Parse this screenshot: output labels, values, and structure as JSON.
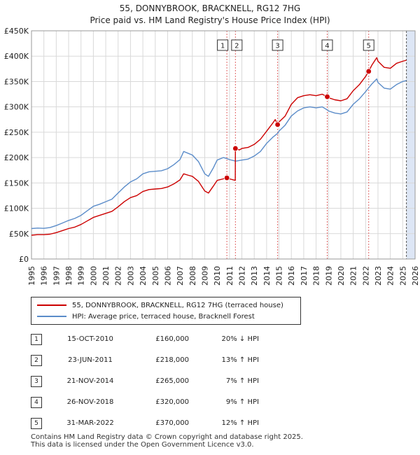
{
  "title_line1": "55, DONNYBROOK, BRACKNELL, RG12 7HG",
  "title_line2": "Price paid vs. HM Land Registry's House Price Index (HPI)",
  "colors": {
    "price": "#cc0000",
    "hpi": "#5b8cc9",
    "shade": "#dde6f5",
    "marker_line": "#e06666"
  },
  "legend": {
    "price_label": "55, DONNYBROOK, BRACKNELL, RG12 7HG (terraced house)",
    "hpi_label": "HPI: Average price, terraced house, Bracknell Forest"
  },
  "sales": [
    {
      "num": "1",
      "date": "15-OCT-2010",
      "price": "£160,000",
      "hpi": "20% ↓ HPI"
    },
    {
      "num": "2",
      "date": "23-JUN-2011",
      "price": "£218,000",
      "hpi": "13% ↑ HPI"
    },
    {
      "num": "3",
      "date": "21-NOV-2014",
      "price": "£265,000",
      "hpi": "7% ↑ HPI"
    },
    {
      "num": "4",
      "date": "26-NOV-2018",
      "price": "£320,000",
      "hpi": "9% ↑ HPI"
    },
    {
      "num": "5",
      "date": "31-MAR-2022",
      "price": "£370,000",
      "hpi": "12% ↑ HPI"
    }
  ],
  "footer": {
    "line1": "Contains HM Land Registry data © Crown copyright and database right 2025.",
    "line2": "This data is licensed under the Open Government Licence v3.0."
  },
  "chart_data": {
    "type": "line",
    "title": "Price paid vs. HM Land Registry's House Price Index (HPI)",
    "xlim": [
      1995,
      2026
    ],
    "ylim": [
      0,
      450000
    ],
    "x_ticks": [
      1995,
      1996,
      1997,
      1998,
      1999,
      2000,
      2001,
      2002,
      2003,
      2004,
      2005,
      2006,
      2007,
      2008,
      2009,
      2010,
      2011,
      2012,
      2013,
      2014,
      2015,
      2016,
      2017,
      2018,
      2019,
      2020,
      2021,
      2022,
      2023,
      2024,
      2025,
      2026
    ],
    "y_ticks": [
      {
        "value": 0,
        "label": "£0"
      },
      {
        "value": 50000,
        "label": "£50K"
      },
      {
        "value": 100000,
        "label": "£100K"
      },
      {
        "value": 150000,
        "label": "£150K"
      },
      {
        "value": 200000,
        "label": "£200K"
      },
      {
        "value": 250000,
        "label": "£250K"
      },
      {
        "value": 300000,
        "label": "£300K"
      },
      {
        "value": 350000,
        "label": "£350K"
      },
      {
        "value": 400000,
        "label": "£400K"
      },
      {
        "value": 450000,
        "label": "£450K"
      }
    ],
    "grid": true,
    "forecast_shade_from": 2025.3,
    "series": [
      {
        "name": "HPI: Average price, terraced house, Bracknell Forest",
        "points": [
          [
            1995,
            60000
          ],
          [
            1995.5,
            61000
          ],
          [
            1996,
            60500
          ],
          [
            1996.5,
            62000
          ],
          [
            1997,
            66000
          ],
          [
            1997.5,
            71000
          ],
          [
            1998,
            76000
          ],
          [
            1998.5,
            80000
          ],
          [
            1999,
            86000
          ],
          [
            1999.5,
            95000
          ],
          [
            2000,
            104000
          ],
          [
            2000.5,
            108000
          ],
          [
            2001,
            113000
          ],
          [
            2001.5,
            118000
          ],
          [
            2002,
            130000
          ],
          [
            2002.5,
            142000
          ],
          [
            2003,
            152000
          ],
          [
            2003.5,
            158000
          ],
          [
            2004,
            168000
          ],
          [
            2004.5,
            172000
          ],
          [
            2005,
            173000
          ],
          [
            2005.5,
            174000
          ],
          [
            2006,
            178000
          ],
          [
            2006.5,
            186000
          ],
          [
            2007,
            196000
          ],
          [
            2007.3,
            212000
          ],
          [
            2007.7,
            208000
          ],
          [
            2008,
            205000
          ],
          [
            2008.5,
            192000
          ],
          [
            2009,
            168000
          ],
          [
            2009.3,
            163000
          ],
          [
            2009.7,
            180000
          ],
          [
            2010,
            195000
          ],
          [
            2010.5,
            200000
          ],
          [
            2010.8,
            198000
          ],
          [
            2011,
            196000
          ],
          [
            2011.5,
            193000
          ],
          [
            2012,
            195000
          ],
          [
            2012.5,
            197000
          ],
          [
            2013,
            203000
          ],
          [
            2013.5,
            212000
          ],
          [
            2014,
            228000
          ],
          [
            2014.5,
            240000
          ],
          [
            2014.9,
            248000
          ],
          [
            2015,
            252000
          ],
          [
            2015.5,
            264000
          ],
          [
            2016,
            282000
          ],
          [
            2016.5,
            292000
          ],
          [
            2017,
            298000
          ],
          [
            2017.5,
            300000
          ],
          [
            2018,
            298000
          ],
          [
            2018.5,
            300000
          ],
          [
            2018.9,
            294000
          ],
          [
            2019,
            292000
          ],
          [
            2019.5,
            288000
          ],
          [
            2020,
            286000
          ],
          [
            2020.5,
            290000
          ],
          [
            2021,
            305000
          ],
          [
            2021.5,
            316000
          ],
          [
            2022,
            330000
          ],
          [
            2022.5,
            345000
          ],
          [
            2022.9,
            355000
          ],
          [
            2023,
            348000
          ],
          [
            2023.5,
            337000
          ],
          [
            2024,
            335000
          ],
          [
            2024.5,
            344000
          ],
          [
            2025,
            350000
          ],
          [
            2025.3,
            352000
          ]
        ]
      },
      {
        "name": "55, DONNYBROOK, BRACKNELL, RG12 7HG (terraced house)",
        "points": [
          [
            1995,
            47000
          ],
          [
            1995.5,
            48000
          ],
          [
            1996,
            48000
          ],
          [
            1996.5,
            49000
          ],
          [
            1997,
            52000
          ],
          [
            1997.5,
            56000
          ],
          [
            1998,
            60000
          ],
          [
            1998.5,
            63000
          ],
          [
            1999,
            68000
          ],
          [
            1999.5,
            75000
          ],
          [
            2000,
            82000
          ],
          [
            2000.5,
            86000
          ],
          [
            2001,
            90000
          ],
          [
            2001.5,
            94000
          ],
          [
            2002,
            103000
          ],
          [
            2002.5,
            113000
          ],
          [
            2003,
            121000
          ],
          [
            2003.5,
            125000
          ],
          [
            2004,
            133000
          ],
          [
            2004.5,
            137000
          ],
          [
            2005,
            138000
          ],
          [
            2005.5,
            139000
          ],
          [
            2006,
            142000
          ],
          [
            2006.5,
            148000
          ],
          [
            2007,
            156000
          ],
          [
            2007.3,
            168000
          ],
          [
            2007.7,
            165000
          ],
          [
            2008,
            163000
          ],
          [
            2008.5,
            153000
          ],
          [
            2009,
            134000
          ],
          [
            2009.3,
            130000
          ],
          [
            2009.7,
            144000
          ],
          [
            2010,
            155000
          ],
          [
            2010.5,
            158000
          ],
          [
            2010.79,
            160000
          ],
          [
            2011,
            158000
          ],
          [
            2011.47,
            155000
          ],
          [
            2011.48,
            218000
          ],
          [
            2011.8,
            215000
          ],
          [
            2012,
            218000
          ],
          [
            2012.5,
            220000
          ],
          [
            2013,
            226000
          ],
          [
            2013.5,
            236000
          ],
          [
            2014,
            252000
          ],
          [
            2014.5,
            268000
          ],
          [
            2014.7,
            275000
          ],
          [
            2014.89,
            265000
          ],
          [
            2015,
            270000
          ],
          [
            2015.5,
            282000
          ],
          [
            2016,
            305000
          ],
          [
            2016.5,
            318000
          ],
          [
            2017,
            322000
          ],
          [
            2017.5,
            324000
          ],
          [
            2018,
            322000
          ],
          [
            2018.5,
            325000
          ],
          [
            2018.9,
            320000
          ],
          [
            2019,
            318000
          ],
          [
            2019.5,
            314000
          ],
          [
            2020,
            312000
          ],
          [
            2020.5,
            316000
          ],
          [
            2021,
            332000
          ],
          [
            2021.5,
            344000
          ],
          [
            2022,
            360000
          ],
          [
            2022.25,
            370000
          ],
          [
            2022.5,
            382000
          ],
          [
            2022.9,
            397000
          ],
          [
            2023,
            390000
          ],
          [
            2023.5,
            378000
          ],
          [
            2024,
            376000
          ],
          [
            2024.5,
            386000
          ],
          [
            2025,
            390000
          ],
          [
            2025.3,
            392000
          ]
        ]
      }
    ],
    "sales": [
      {
        "label": "1",
        "x": 2010.79,
        "y": 160000
      },
      {
        "label": "2",
        "x": 2011.48,
        "y": 218000
      },
      {
        "label": "3",
        "x": 2014.89,
        "y": 265000
      },
      {
        "label": "4",
        "x": 2018.9,
        "y": 320000
      },
      {
        "label": "5",
        "x": 2022.25,
        "y": 370000
      }
    ]
  }
}
